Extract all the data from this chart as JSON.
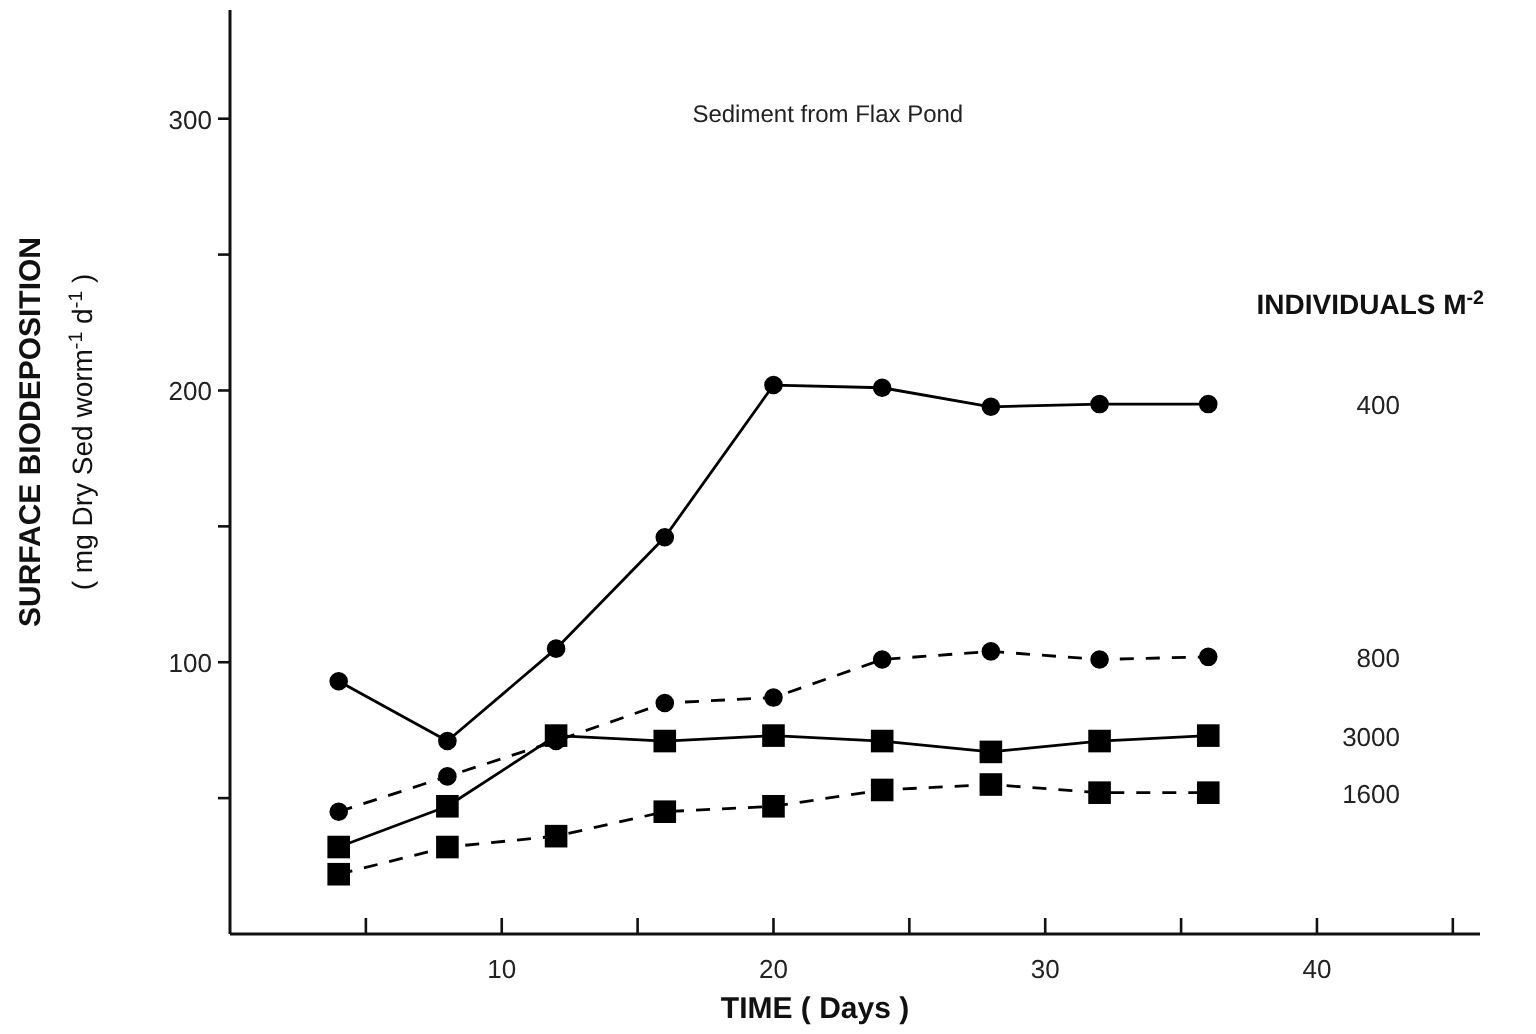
{
  "chart_data": {
    "type": "line",
    "title": "Sediment from Flax Pond",
    "xlabel": "TIME ( Days )",
    "ylabel": "SURFACE BIODEPOSITION\n( mg Dry Sed  worm$^{-1}$ d$^{-1}$ )",
    "legend_title": "INDIVIDUALS M$^{-2}$",
    "x": [
      4,
      8,
      12,
      16,
      20,
      24,
      28,
      32,
      36
    ],
    "xlim": [
      0,
      46
    ],
    "xticks": [
      {
        "value": 5,
        "label": null
      },
      10,
      {
        "value": 15,
        "label": null
      },
      20,
      {
        "value": 25,
        "label": null
      },
      30,
      {
        "value": 35,
        "label": null
      },
      40,
      {
        "value": 45,
        "label": null
      }
    ],
    "ylim": [
      0,
      340
    ],
    "yticks": [
      {
        "value": 50,
        "label": null
      },
      100,
      {
        "value": 150,
        "label": null
      },
      200,
      {
        "value": 250,
        "label": null
      },
      300
    ],
    "grid": false,
    "series": [
      {
        "name": "400",
        "color": "#000000",
        "marker": "circle",
        "line_style": "solid",
        "values": [
          93,
          71,
          105,
          146,
          202,
          201,
          194,
          195,
          195
        ]
      },
      {
        "name": "800",
        "color": "#000000",
        "marker": "circle",
        "line_style": "dashed",
        "values": [
          45,
          58,
          71,
          85,
          87,
          101,
          104,
          101,
          102
        ]
      },
      {
        "name": "3000",
        "color": "#000000",
        "marker": "square",
        "line_style": "solid",
        "values": [
          32,
          47,
          73,
          71,
          73,
          71,
          67,
          71,
          73
        ]
      },
      {
        "name": "1600",
        "color": "#000000",
        "marker": "square",
        "line_style": "dashed",
        "values": [
          22,
          32,
          36,
          45,
          47,
          53,
          55,
          52,
          52
        ]
      }
    ]
  }
}
